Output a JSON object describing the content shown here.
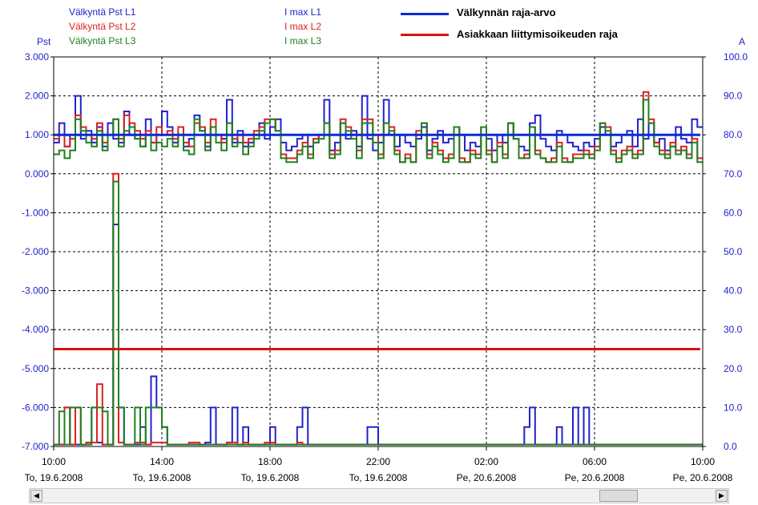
{
  "legend": {
    "pst_l1": "Välkyntä Pst L1",
    "pst_l2": "Välkyntä Pst L2",
    "pst_l3": "Välkyntä Pst L3",
    "imax_l1": "I max L1",
    "imax_l2": "I max L2",
    "imax_l3": "I max L3",
    "limit": "Välkynnän raja-arvo",
    "customer_limit": "Asiakkaan liittymisoikeuden raja"
  },
  "axes": {
    "left_unit": "Pst",
    "right_unit": "A"
  },
  "colors": {
    "l1": "#2222cc",
    "l2": "#dd2020",
    "l3": "#208020",
    "limit": "#0b2bd8",
    "customer_limit": "#dd1111"
  },
  "chart_data": {
    "type": "line",
    "left_axis": {
      "label": "Pst",
      "ylim": [
        -7,
        3
      ],
      "ticks": [
        "3.000",
        "2.000",
        "1.000",
        "0.000",
        "-1.000",
        "-2.000",
        "-3.000",
        "-4.000",
        "-5.000",
        "-6.000",
        "-7.000"
      ]
    },
    "right_axis": {
      "label": "A",
      "ylim": [
        0,
        100
      ],
      "ticks": [
        "100.0",
        "90.0",
        "80.0",
        "70.0",
        "60.0",
        "50.0",
        "40.0",
        "30.0",
        "20.0",
        "10.0",
        "0.0"
      ]
    },
    "x_axis": {
      "range_hours": [
        0,
        24
      ],
      "ticks": [
        {
          "time": "10:00",
          "date": "To, 19.6.2008"
        },
        {
          "time": "14:00",
          "date": "To, 19.6.2008"
        },
        {
          "time": "18:00",
          "date": "To, 19.6.2008"
        },
        {
          "time": "22:00",
          "date": "To, 19.6.2008"
        },
        {
          "time": "02:00",
          "date": "Pe, 20.6.2008"
        },
        {
          "time": "06:00",
          "date": "Pe, 20.6.2008"
        },
        {
          "time": "10:00",
          "date": "Pe, 20.6.2008"
        }
      ]
    },
    "grid": true,
    "reference_lines": [
      {
        "name": "Välkynnän raja-arvo",
        "value": 1.0,
        "axis": "left"
      },
      {
        "name": "Asiakkaan liittymisoikeuden raja",
        "value": -4.5,
        "axis": "left"
      }
    ],
    "series_axis": {
      "Välkyntä Pst L1": "left",
      "Välkyntä Pst L2": "left",
      "Välkyntä Pst L3": "left",
      "I max L1": "right",
      "I max L2": "right",
      "I max L3": "right"
    },
    "series_hours": [
      0.0,
      0.2,
      0.4,
      0.6,
      0.8,
      1.0,
      1.2,
      1.4,
      1.6,
      1.8,
      2.0,
      2.2,
      2.4,
      2.6,
      2.8,
      3.0,
      3.2,
      3.4,
      3.6,
      3.8,
      4.0,
      4.2,
      4.4,
      4.6,
      4.8,
      5.0,
      5.2,
      5.4,
      5.6,
      5.8,
      6.0,
      6.2,
      6.4,
      6.6,
      6.8,
      7.0,
      7.2,
      7.4,
      7.6,
      7.8,
      8.0,
      8.2,
      8.4,
      8.6,
      8.8,
      9.0,
      9.2,
      9.4,
      9.6,
      9.8,
      10.0,
      10.2,
      10.4,
      10.6,
      10.8,
      11.0,
      11.2,
      11.4,
      11.6,
      11.8,
      12.0,
      12.2,
      12.4,
      12.6,
      12.8,
      13.0,
      13.2,
      13.4,
      13.6,
      13.8,
      14.0,
      14.2,
      14.4,
      14.6,
      14.8,
      15.0,
      15.2,
      15.4,
      15.6,
      15.8,
      16.0,
      16.2,
      16.4,
      16.6,
      16.8,
      17.0,
      17.2,
      17.4,
      17.6,
      17.8,
      18.0,
      18.2,
      18.4,
      18.6,
      18.8,
      19.0,
      19.2,
      19.4,
      19.6,
      19.8,
      20.0,
      20.2,
      20.4,
      20.6,
      20.8,
      21.0,
      21.2,
      21.4,
      21.6,
      21.8,
      22.0,
      22.2,
      22.4,
      22.6,
      22.8,
      23.0,
      23.2,
      23.4,
      23.6,
      23.8
    ],
    "series": [
      {
        "name": "Välkyntä Pst L1",
        "values": [
          0.8,
          1.3,
          0.7,
          1.0,
          2.0,
          0.9,
          1.1,
          0.8,
          1.2,
          0.7,
          1.3,
          0.9,
          0.8,
          1.6,
          1.0,
          0.9,
          0.7,
          1.4,
          0.8,
          1.0,
          1.6,
          1.2,
          0.8,
          1.0,
          0.7,
          0.9,
          1.5,
          1.1,
          0.7,
          1.2,
          1.0,
          0.9,
          1.9,
          0.8,
          1.1,
          0.7,
          0.8,
          1.0,
          1.3,
          0.9,
          1.2,
          1.4,
          0.8,
          0.6,
          0.7,
          0.9,
          1.0,
          0.7,
          0.8,
          1.0,
          1.9,
          0.6,
          0.8,
          1.3,
          0.9,
          1.1,
          0.7,
          2.0,
          0.9,
          0.6,
          0.8,
          1.9,
          1.0,
          0.7,
          1.0,
          0.8,
          0.7,
          0.9,
          1.2,
          0.6,
          0.9,
          1.1,
          0.8,
          0.9,
          1.2,
          1.0,
          0.6,
          0.8,
          0.7,
          1.0,
          0.9,
          0.6,
          1.0,
          0.8,
          1.3,
          0.9,
          0.7,
          0.6,
          1.3,
          1.5,
          0.9,
          0.7,
          0.6,
          1.1,
          1.0,
          0.8,
          0.7,
          0.6,
          0.8,
          0.7,
          0.9,
          1.2,
          1.0,
          0.7,
          0.8,
          1.0,
          1.1,
          0.7,
          1.4,
          0.9,
          1.3,
          0.8,
          0.9,
          0.6,
          0.7,
          1.2,
          0.9,
          0.8,
          1.4,
          1.2
        ]
      },
      {
        "name": "Välkyntä Pst L2",
        "values": [
          0.9,
          1.0,
          0.7,
          0.9,
          1.5,
          1.2,
          1.0,
          0.9,
          1.3,
          0.8,
          1.0,
          1.4,
          0.9,
          1.5,
          1.3,
          1.1,
          0.9,
          1.1,
          0.8,
          1.2,
          1.0,
          1.1,
          0.9,
          1.2,
          0.8,
          0.7,
          1.3,
          1.2,
          0.8,
          1.4,
          1.0,
          0.8,
          1.3,
          0.9,
          1.0,
          0.8,
          0.9,
          1.1,
          1.2,
          1.4,
          1.4,
          1.1,
          0.5,
          0.4,
          0.4,
          0.6,
          0.8,
          0.5,
          0.9,
          1.0,
          1.3,
          0.5,
          0.6,
          1.4,
          1.2,
          1.0,
          0.6,
          1.4,
          1.4,
          1.0,
          0.5,
          1.3,
          1.2,
          0.6,
          0.3,
          0.5,
          0.3,
          1.1,
          1.3,
          0.5,
          0.8,
          0.6,
          0.4,
          0.5,
          1.2,
          0.4,
          0.3,
          0.6,
          0.5,
          1.2,
          0.6,
          0.3,
          0.8,
          0.5,
          1.3,
          0.9,
          0.4,
          0.5,
          1.2,
          0.6,
          0.4,
          0.3,
          0.4,
          0.8,
          0.4,
          0.3,
          0.5,
          0.5,
          0.6,
          0.5,
          0.7,
          1.3,
          1.2,
          0.6,
          0.4,
          0.6,
          0.7,
          0.5,
          0.6,
          2.1,
          1.4,
          0.8,
          0.6,
          0.5,
          0.8,
          0.6,
          0.7,
          0.5,
          0.9,
          0.4
        ]
      },
      {
        "name": "Välkyntä Pst L3",
        "values": [
          0.5,
          0.6,
          0.4,
          0.6,
          1.4,
          1.1,
          0.8,
          0.7,
          1.1,
          0.6,
          1.0,
          1.4,
          0.7,
          1.1,
          1.2,
          0.9,
          0.7,
          1.0,
          0.6,
          0.8,
          0.7,
          0.9,
          0.7,
          1.0,
          0.6,
          0.5,
          1.4,
          1.1,
          0.6,
          1.2,
          0.8,
          0.6,
          1.3,
          0.7,
          0.8,
          0.5,
          0.7,
          0.9,
          1.1,
          1.3,
          1.4,
          1.1,
          0.4,
          0.3,
          0.3,
          0.5,
          0.7,
          0.4,
          0.8,
          0.9,
          1.3,
          0.4,
          0.5,
          1.3,
          1.1,
          0.9,
          0.4,
          1.3,
          1.3,
          0.8,
          0.4,
          1.3,
          1.1,
          0.5,
          0.3,
          0.4,
          0.3,
          1.0,
          1.3,
          0.4,
          0.7,
          0.5,
          0.3,
          0.4,
          1.2,
          0.3,
          0.3,
          0.5,
          0.4,
          1.2,
          0.5,
          0.3,
          0.7,
          0.4,
          1.3,
          0.9,
          0.4,
          0.4,
          1.2,
          0.5,
          0.4,
          0.3,
          0.3,
          0.7,
          0.3,
          0.3,
          0.4,
          0.4,
          0.5,
          0.4,
          0.6,
          1.3,
          1.1,
          0.5,
          0.3,
          0.5,
          0.6,
          0.4,
          0.5,
          1.9,
          1.3,
          0.7,
          0.5,
          0.4,
          0.7,
          0.5,
          0.6,
          0.4,
          0.8,
          0.3
        ]
      },
      {
        "name": "I max L1",
        "values": [
          0.5,
          0.5,
          10,
          0.5,
          0.5,
          0.5,
          1,
          10,
          1,
          0.5,
          0.5,
          57,
          10,
          0.5,
          0.5,
          0.5,
          5,
          0.5,
          18,
          10,
          5,
          0.5,
          0.5,
          0.5,
          0.5,
          0.5,
          0.5,
          0.5,
          1,
          10,
          0.5,
          0.5,
          1,
          10,
          0.5,
          5,
          0.5,
          0.5,
          0.5,
          0.5,
          5,
          0.5,
          0.5,
          0.5,
          0.5,
          5,
          10,
          0.5,
          0.5,
          0.5,
          0.5,
          0.5,
          0.5,
          0.5,
          0.5,
          0.5,
          0.5,
          0.5,
          5,
          5,
          0.5,
          0.5,
          0.5,
          0.5,
          0.5,
          0.5,
          0.5,
          0.5,
          0.5,
          0.5,
          0.5,
          0.5,
          0.5,
          0.5,
          0.5,
          0.5,
          0.5,
          0.5,
          0.5,
          0.5,
          0.5,
          0.5,
          0.5,
          0.5,
          0.5,
          0.5,
          0.5,
          5,
          10,
          0.5,
          0.5,
          0.5,
          0.5,
          5,
          0.5,
          0.5,
          10,
          0.5,
          10,
          0.5,
          0.5,
          0.5,
          0.5,
          0.5,
          0.5,
          0.5,
          0.5,
          0.5,
          0.5,
          0.5,
          0.5,
          0.5,
          0.5,
          0.5,
          0.5,
          0.5,
          0.5,
          0.5,
          0.5,
          0.5
        ]
      },
      {
        "name": "I max L2",
        "values": [
          0.5,
          0.5,
          10,
          0.5,
          10,
          0.5,
          1,
          1,
          16,
          0.5,
          0.5,
          70,
          1,
          0.5,
          0.5,
          1,
          1,
          0.5,
          1,
          1,
          1,
          0.5,
          0.5,
          0.5,
          0.5,
          1,
          1,
          0.5,
          0.5,
          0.5,
          0.5,
          0.5,
          1,
          1,
          0.5,
          1,
          0.5,
          0.5,
          0.5,
          1,
          1,
          0.5,
          0.5,
          0.5,
          0.5,
          1,
          0.5,
          0.5,
          0.5,
          0.5,
          0.5,
          0.5,
          0.5,
          0.5,
          0.5,
          0.5,
          0.5,
          0.5,
          0.5,
          0.5,
          0.5,
          0.5,
          0.5,
          0.5,
          0.5,
          0.5,
          0.5,
          0.5,
          0.5,
          0.5,
          0.5,
          0.5,
          0.5,
          0.5,
          0.5,
          0.5,
          0.5,
          0.5,
          0.5,
          0.5,
          0.5,
          0.5,
          0.5,
          0.5,
          0.5,
          0.5,
          0.5,
          0.5,
          0.5,
          0.5,
          0.5,
          0.5,
          0.5,
          0.5,
          0.5,
          0.5,
          0.5,
          0.5,
          0.5,
          0.5,
          0.5,
          0.5,
          0.5,
          0.5,
          0.5,
          0.5,
          0.5,
          0.5,
          0.5,
          0.5,
          0.5,
          0.5,
          0.5,
          0.5,
          0.5,
          0.5,
          0.5,
          0.5,
          0.5,
          0.5
        ]
      },
      {
        "name": "I max L3",
        "values": [
          0.5,
          9,
          0.5,
          10,
          10,
          0.5,
          0.5,
          10,
          10,
          9,
          0.5,
          68,
          10,
          0.5,
          0.5,
          10,
          0.5,
          10,
          10,
          10,
          5,
          0.5,
          0.5,
          0.5,
          0.5,
          0.5,
          0.5,
          0.5,
          0.5,
          0.5,
          0.5,
          0.5,
          0.5,
          0.5,
          0.5,
          0.5,
          0.5,
          0.5,
          0.5,
          0.5,
          0.5,
          0.5,
          0.5,
          0.5,
          0.5,
          0.5,
          0.5,
          0.5,
          0.5,
          0.5,
          0.5,
          0.5,
          0.5,
          0.5,
          0.5,
          0.5,
          0.5,
          0.5,
          0.5,
          0.5,
          0.5,
          0.5,
          0.5,
          0.5,
          0.5,
          0.5,
          0.5,
          0.5,
          0.5,
          0.5,
          0.5,
          0.5,
          0.5,
          0.5,
          0.5,
          0.5,
          0.5,
          0.5,
          0.5,
          0.5,
          0.5,
          0.5,
          0.5,
          0.5,
          0.5,
          0.5,
          0.5,
          0.5,
          0.5,
          0.5,
          0.5,
          0.5,
          0.5,
          0.5,
          0.5,
          0.5,
          0.5,
          0.5,
          0.5,
          0.5,
          0.5,
          0.5,
          0.5,
          0.5,
          0.5,
          0.5,
          0.5,
          0.5,
          0.5,
          0.5,
          0.5,
          0.5,
          0.5,
          0.5,
          0.5,
          0.5,
          0.5,
          0.5,
          0.5,
          0.5,
          0.5
        ]
      }
    ]
  }
}
